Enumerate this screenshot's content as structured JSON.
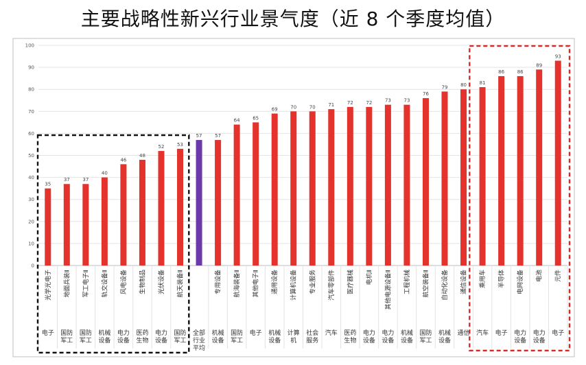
{
  "chart_data": {
    "type": "bar",
    "title": "主要战略性新兴行业景气度（近 8 个季度均值）",
    "ylim": [
      0,
      100
    ],
    "yticks": [
      0,
      10,
      20,
      30,
      40,
      50,
      60,
      70,
      80,
      90,
      100
    ],
    "grid": true,
    "colors": {
      "bar": "#e3332c",
      "average_bar": "#6a3aa8",
      "low_box": "#111111",
      "high_box": "#d42a2a"
    },
    "categories": [
      {
        "sub": "光学光电子",
        "group": "电子",
        "value": 35
      },
      {
        "sub": "地面兵装Ⅱ",
        "group": "国防军工",
        "value": 37
      },
      {
        "sub": "军工电子Ⅱ",
        "group": "国防军工",
        "value": 37
      },
      {
        "sub": "轨交设备Ⅱ",
        "group": "机械设备",
        "value": 40
      },
      {
        "sub": "风电设备",
        "group": "电力设备",
        "value": 46
      },
      {
        "sub": "生物制品",
        "group": "医药生物",
        "value": 48
      },
      {
        "sub": "光伏设备",
        "group": "电力设备",
        "value": 52
      },
      {
        "sub": "航天装备Ⅱ",
        "group": "国防军工",
        "value": 53
      },
      {
        "sub": "",
        "group": "全部行业平均",
        "value": 57,
        "average": true
      },
      {
        "sub": "专用设备",
        "group": "机械设备",
        "value": 57
      },
      {
        "sub": "航海装备Ⅱ",
        "group": "国防军工",
        "value": 64
      },
      {
        "sub": "其他电子Ⅱ",
        "group": "电子",
        "value": 65
      },
      {
        "sub": "通用设备",
        "group": "机械设备",
        "value": 69
      },
      {
        "sub": "计算机设备",
        "group": "计算机",
        "value": 70
      },
      {
        "sub": "专业服务",
        "group": "社会服务",
        "value": 70
      },
      {
        "sub": "汽车零部件",
        "group": "汽车",
        "value": 71
      },
      {
        "sub": "医疗器械",
        "group": "医药生物",
        "value": 72
      },
      {
        "sub": "电机Ⅱ",
        "group": "电力设备",
        "value": 72
      },
      {
        "sub": "其他电源设备Ⅱ",
        "group": "电力设备",
        "value": 73
      },
      {
        "sub": "工程机械",
        "group": "机械设备",
        "value": 73
      },
      {
        "sub": "航空装备Ⅱ",
        "group": "国防军工",
        "value": 76
      },
      {
        "sub": "自动化设备",
        "group": "机械设备",
        "value": 79
      },
      {
        "sub": "通信设备",
        "group": "通信",
        "value": 80
      },
      {
        "sub": "乘用车",
        "group": "汽车",
        "value": 81
      },
      {
        "sub": "半导体",
        "group": "电子",
        "value": 86
      },
      {
        "sub": "电网设备",
        "group": "电力设备",
        "value": 86
      },
      {
        "sub": "电池",
        "group": "电力设备",
        "value": 89
      },
      {
        "sub": "元件",
        "group": "电子",
        "value": 93
      }
    ]
  }
}
